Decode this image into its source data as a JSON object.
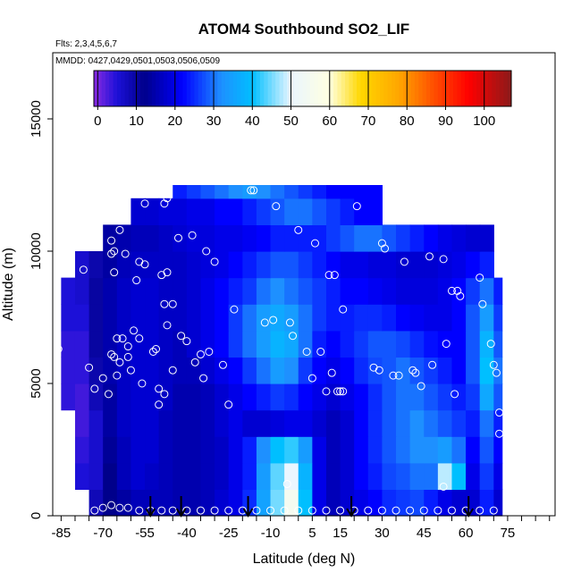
{
  "chart_data": {
    "type": "heatmap",
    "title": "ATOM4 Southbound SO2_LIF",
    "subtitle_flights": "Flts: 2,3,4,5,6,7",
    "subtitle_dates": "MMDD: 0427,0429,0501,0503,0506,0509",
    "xlabel": "Latitude (deg N)",
    "ylabel": "Altitude (m)",
    "xlim": [
      -88,
      92
    ],
    "ylim": [
      0,
      17500
    ],
    "x_ticks": [
      -85,
      -70,
      -55,
      -40,
      -25,
      -10,
      5,
      15,
      30,
      45,
      60,
      75
    ],
    "y_ticks": [
      0,
      5000,
      10000,
      15000
    ],
    "colorbar": {
      "labels": [
        0,
        10,
        20,
        30,
        40,
        50,
        60,
        70,
        80,
        90,
        100
      ],
      "min": -1,
      "max": 107,
      "stops": [
        {
          "v": -1,
          "c": "#8a2be2"
        },
        {
          "v": 5,
          "c": "#1c10d8"
        },
        {
          "v": 12,
          "c": "#00008b"
        },
        {
          "v": 22,
          "c": "#0000ff"
        },
        {
          "v": 32,
          "c": "#1e90ff"
        },
        {
          "v": 40,
          "c": "#00bfff"
        },
        {
          "v": 50,
          "c": "#eaf6ff"
        },
        {
          "v": 60,
          "c": "#ffffe0"
        },
        {
          "v": 68,
          "c": "#ffd700"
        },
        {
          "v": 78,
          "c": "#ffa500"
        },
        {
          "v": 88,
          "c": "#ff4500"
        },
        {
          "v": 96,
          "c": "#ff0000"
        },
        {
          "v": 107,
          "c": "#8b1a1a"
        }
      ]
    },
    "field_grid": {
      "lat_edges": [
        -85,
        -80,
        -75,
        -70,
        -65,
        -60,
        -55,
        -50,
        -45,
        -40,
        -35,
        -30,
        -25,
        -20,
        -15,
        -10,
        -5,
        0,
        5,
        10,
        15,
        20,
        25,
        30,
        35,
        40,
        45,
        50,
        55,
        60,
        65,
        70,
        73
      ],
      "alt_edges": [
        0,
        1000,
        2000,
        3000,
        4000,
        5000,
        6000,
        7000,
        8000,
        9000,
        10000,
        11000,
        12000,
        12500
      ],
      "values": [
        [
          null,
          null,
          8,
          12,
          14,
          16,
          16,
          16,
          15,
          15,
          16,
          18,
          20,
          25,
          35,
          45,
          55,
          40,
          20,
          16,
          18,
          20,
          22,
          25,
          26,
          27,
          24,
          20,
          18,
          18,
          24,
          18
        ],
        [
          null,
          5,
          6,
          12,
          16,
          18,
          17,
          16,
          15,
          15,
          16,
          17,
          20,
          24,
          34,
          44,
          50,
          38,
          20,
          16,
          18,
          22,
          24,
          27,
          28,
          30,
          30,
          48,
          40,
          20,
          26,
          20
        ],
        [
          null,
          4,
          6,
          13,
          16,
          18,
          18,
          16,
          15,
          15,
          16,
          17,
          20,
          24,
          32,
          40,
          42,
          34,
          20,
          16,
          18,
          22,
          25,
          28,
          30,
          32,
          32,
          34,
          30,
          22,
          28,
          22
        ],
        [
          null,
          3,
          6,
          14,
          17,
          18,
          18,
          16,
          15,
          15,
          16,
          18,
          20,
          18,
          18,
          19,
          20,
          20,
          18,
          16,
          18,
          22,
          25,
          28,
          30,
          32,
          30,
          28,
          26,
          24,
          30,
          24
        ],
        [
          4,
          3,
          8,
          14,
          17,
          18,
          18,
          17,
          15,
          15,
          16,
          18,
          20,
          22,
          24,
          26,
          25,
          22,
          20,
          18,
          20,
          22,
          25,
          28,
          30,
          30,
          28,
          26,
          24,
          26,
          36,
          28
        ],
        [
          4,
          4,
          9,
          15,
          17,
          18,
          18,
          17,
          16,
          16,
          18,
          20,
          22,
          26,
          30,
          34,
          32,
          26,
          22,
          20,
          22,
          25,
          27,
          28,
          30,
          28,
          26,
          24,
          22,
          28,
          40,
          30
        ],
        [
          4,
          4,
          10,
          15,
          17,
          18,
          18,
          17,
          16,
          18,
          20,
          22,
          26,
          30,
          34,
          38,
          36,
          30,
          24,
          22,
          24,
          26,
          28,
          28,
          27,
          25,
          23,
          22,
          22,
          28,
          38,
          28
        ],
        [
          5,
          5,
          10,
          15,
          17,
          18,
          18,
          17,
          17,
          18,
          20,
          22,
          26,
          30,
          34,
          36,
          34,
          30,
          26,
          24,
          24,
          25,
          25,
          24,
          22,
          21,
          20,
          20,
          22,
          28,
          34,
          26
        ],
        [
          5,
          6,
          10,
          15,
          17,
          18,
          18,
          17,
          17,
          18,
          20,
          22,
          24,
          26,
          30,
          32,
          30,
          28,
          26,
          24,
          22,
          22,
          21,
          20,
          19,
          19,
          19,
          20,
          22,
          26,
          30,
          24
        ],
        [
          null,
          6,
          9,
          14,
          16,
          17,
          17,
          17,
          17,
          18,
          19,
          20,
          22,
          24,
          26,
          28,
          28,
          26,
          24,
          22,
          20,
          20,
          19,
          19,
          18,
          18,
          18,
          19,
          20,
          22,
          24,
          null
        ],
        [
          null,
          null,
          null,
          14,
          15,
          16,
          16,
          17,
          18,
          19,
          19,
          20,
          20,
          21,
          22,
          24,
          24,
          24,
          24,
          26,
          28,
          30,
          30,
          28,
          26,
          24,
          22,
          20,
          19,
          18,
          18,
          null
        ],
        [
          null,
          null,
          null,
          null,
          null,
          18,
          18,
          19,
          19,
          20,
          20,
          22,
          22,
          24,
          26,
          28,
          30,
          30,
          28,
          26,
          24,
          22,
          22,
          null,
          null,
          null,
          null,
          null,
          null,
          null,
          null,
          null
        ],
        [
          null,
          null,
          null,
          null,
          null,
          null,
          null,
          null,
          24,
          26,
          28,
          30,
          32,
          34,
          32,
          30,
          28,
          26,
          24,
          22,
          22,
          22,
          22,
          null,
          null,
          null,
          null,
          null,
          null,
          null,
          null,
          null
        ]
      ]
    },
    "observations": [
      {
        "lat": -86,
        "alt": 6300
      },
      {
        "lat": -85,
        "alt": 9600
      },
      {
        "lat": -82,
        "alt": 9600
      },
      {
        "lat": -77,
        "alt": 9300
      },
      {
        "lat": -75,
        "alt": 5600
      },
      {
        "lat": -73,
        "alt": 4800
      },
      {
        "lat": -73,
        "alt": 200
      },
      {
        "lat": -70,
        "alt": 5200
      },
      {
        "lat": -68,
        "alt": 4600
      },
      {
        "lat": -67,
        "alt": 6100
      },
      {
        "lat": -67,
        "alt": 9900
      },
      {
        "lat": -67,
        "alt": 10400
      },
      {
        "lat": -66,
        "alt": 10000
      },
      {
        "lat": -66,
        "alt": 9200
      },
      {
        "lat": -66,
        "alt": 6000
      },
      {
        "lat": -65,
        "alt": 6700
      },
      {
        "lat": -65,
        "alt": 5300
      },
      {
        "lat": -64,
        "alt": 10800
      },
      {
        "lat": -64,
        "alt": 5800
      },
      {
        "lat": -63,
        "alt": 6700
      },
      {
        "lat": -62,
        "alt": 9900
      },
      {
        "lat": -61,
        "alt": 6400
      },
      {
        "lat": -61,
        "alt": 6000
      },
      {
        "lat": -60,
        "alt": 5500
      },
      {
        "lat": -59,
        "alt": 7000
      },
      {
        "lat": -58,
        "alt": 8900
      },
      {
        "lat": -57,
        "alt": 9600
      },
      {
        "lat": -57,
        "alt": 6700
      },
      {
        "lat": -56,
        "alt": 5000
      },
      {
        "lat": -55,
        "alt": 11800
      },
      {
        "lat": -55,
        "alt": 9500
      },
      {
        "lat": -52,
        "alt": 6200
      },
      {
        "lat": -51,
        "alt": 6300
      },
      {
        "lat": -50,
        "alt": 4800
      },
      {
        "lat": -50,
        "alt": 4200
      },
      {
        "lat": -49,
        "alt": 9100
      },
      {
        "lat": -48,
        "alt": 11800
      },
      {
        "lat": -48,
        "alt": 8000
      },
      {
        "lat": -48,
        "alt": 4600
      },
      {
        "lat": -47,
        "alt": 12000
      },
      {
        "lat": -47,
        "alt": 7200
      },
      {
        "lat": -47,
        "alt": 9200
      },
      {
        "lat": -45,
        "alt": 8000
      },
      {
        "lat": -45,
        "alt": 5500
      },
      {
        "lat": -43,
        "alt": 10500
      },
      {
        "lat": -42,
        "alt": 6800
      },
      {
        "lat": -40,
        "alt": 6600
      },
      {
        "lat": -38,
        "alt": 10600
      },
      {
        "lat": -37,
        "alt": 5800
      },
      {
        "lat": -35,
        "alt": 6100
      },
      {
        "lat": -34,
        "alt": 5200
      },
      {
        "lat": -33,
        "alt": 10000
      },
      {
        "lat": -32,
        "alt": 6200
      },
      {
        "lat": -30,
        "alt": 9600
      },
      {
        "lat": -27,
        "alt": 5700
      },
      {
        "lat": -25,
        "alt": 4200
      },
      {
        "lat": -23,
        "alt": 7800
      },
      {
        "lat": -17,
        "alt": 12300
      },
      {
        "lat": -16,
        "alt": 12300
      },
      {
        "lat": -12,
        "alt": 7300
      },
      {
        "lat": -9,
        "alt": 7400
      },
      {
        "lat": -8,
        "alt": 11700
      },
      {
        "lat": -3,
        "alt": 7300
      },
      {
        "lat": -2,
        "alt": 6800
      },
      {
        "lat": 0,
        "alt": 10800
      },
      {
        "lat": 3,
        "alt": 6200
      },
      {
        "lat": 5,
        "alt": 5200
      },
      {
        "lat": 6,
        "alt": 10300
      },
      {
        "lat": 8,
        "alt": 6200
      },
      {
        "lat": 10,
        "alt": 4700
      },
      {
        "lat": 11,
        "alt": 9100
      },
      {
        "lat": 12,
        "alt": 5400
      },
      {
        "lat": 13,
        "alt": 9100
      },
      {
        "lat": 14,
        "alt": 4700
      },
      {
        "lat": 15,
        "alt": 4700
      },
      {
        "lat": 16,
        "alt": 7800
      },
      {
        "lat": 16,
        "alt": 4700
      },
      {
        "lat": 21,
        "alt": 11700
      },
      {
        "lat": 27,
        "alt": 5600
      },
      {
        "lat": 29,
        "alt": 5500
      },
      {
        "lat": 30,
        "alt": 10300
      },
      {
        "lat": 31,
        "alt": 10100
      },
      {
        "lat": 34,
        "alt": 5300
      },
      {
        "lat": 36,
        "alt": 5300
      },
      {
        "lat": 38,
        "alt": 9600
      },
      {
        "lat": 41,
        "alt": 5500
      },
      {
        "lat": 42,
        "alt": 5400
      },
      {
        "lat": 44,
        "alt": 4900
      },
      {
        "lat": 47,
        "alt": 9800
      },
      {
        "lat": 48,
        "alt": 5700
      },
      {
        "lat": 52,
        "alt": 9700
      },
      {
        "lat": 53,
        "alt": 6500
      },
      {
        "lat": 55,
        "alt": 8500
      },
      {
        "lat": 56,
        "alt": 4600
      },
      {
        "lat": 57,
        "alt": 8500
      },
      {
        "lat": 58,
        "alt": 8300
      },
      {
        "lat": 64,
        "alt": 11400
      },
      {
        "lat": 65,
        "alt": 9000
      },
      {
        "lat": 66,
        "alt": 8000
      },
      {
        "lat": 69,
        "alt": 6500
      },
      {
        "lat": 70,
        "alt": 5700
      },
      {
        "lat": 71,
        "alt": 5400
      },
      {
        "lat": 72,
        "alt": 3900
      },
      {
        "lat": 72,
        "alt": 3100
      },
      {
        "lat": -4,
        "alt": 1200
      },
      {
        "lat": 52,
        "alt": 1100
      },
      {
        "lat": -70,
        "alt": 300
      },
      {
        "lat": -67,
        "alt": 400
      },
      {
        "lat": -64,
        "alt": 300
      },
      {
        "lat": -61,
        "alt": 300
      },
      {
        "lat": -57,
        "alt": 200
      },
      {
        "lat": -53,
        "alt": 200
      },
      {
        "lat": -49,
        "alt": 200
      },
      {
        "lat": -45,
        "alt": 200
      },
      {
        "lat": -40,
        "alt": 200
      },
      {
        "lat": -35,
        "alt": 200
      },
      {
        "lat": -30,
        "alt": 200
      },
      {
        "lat": -25,
        "alt": 200
      },
      {
        "lat": -20,
        "alt": 200
      },
      {
        "lat": -15,
        "alt": 200
      },
      {
        "lat": -10,
        "alt": 200
      },
      {
        "lat": -5,
        "alt": 200
      },
      {
        "lat": 0,
        "alt": 200
      },
      {
        "lat": 5,
        "alt": 200
      },
      {
        "lat": 10,
        "alt": 200
      },
      {
        "lat": 15,
        "alt": 200
      },
      {
        "lat": 20,
        "alt": 200
      },
      {
        "lat": 25,
        "alt": 200
      },
      {
        "lat": 30,
        "alt": 200
      },
      {
        "lat": 35,
        "alt": 200
      },
      {
        "lat": 40,
        "alt": 200
      },
      {
        "lat": 45,
        "alt": 200
      },
      {
        "lat": 50,
        "alt": 200
      },
      {
        "lat": 55,
        "alt": 200
      },
      {
        "lat": 60,
        "alt": 200
      },
      {
        "lat": 65,
        "alt": 200
      },
      {
        "lat": 70,
        "alt": 200
      }
    ],
    "arrows_lat": [
      -53,
      -42,
      -18,
      19,
      61
    ],
    "grid": false,
    "legend": "colorbar top-inside"
  }
}
